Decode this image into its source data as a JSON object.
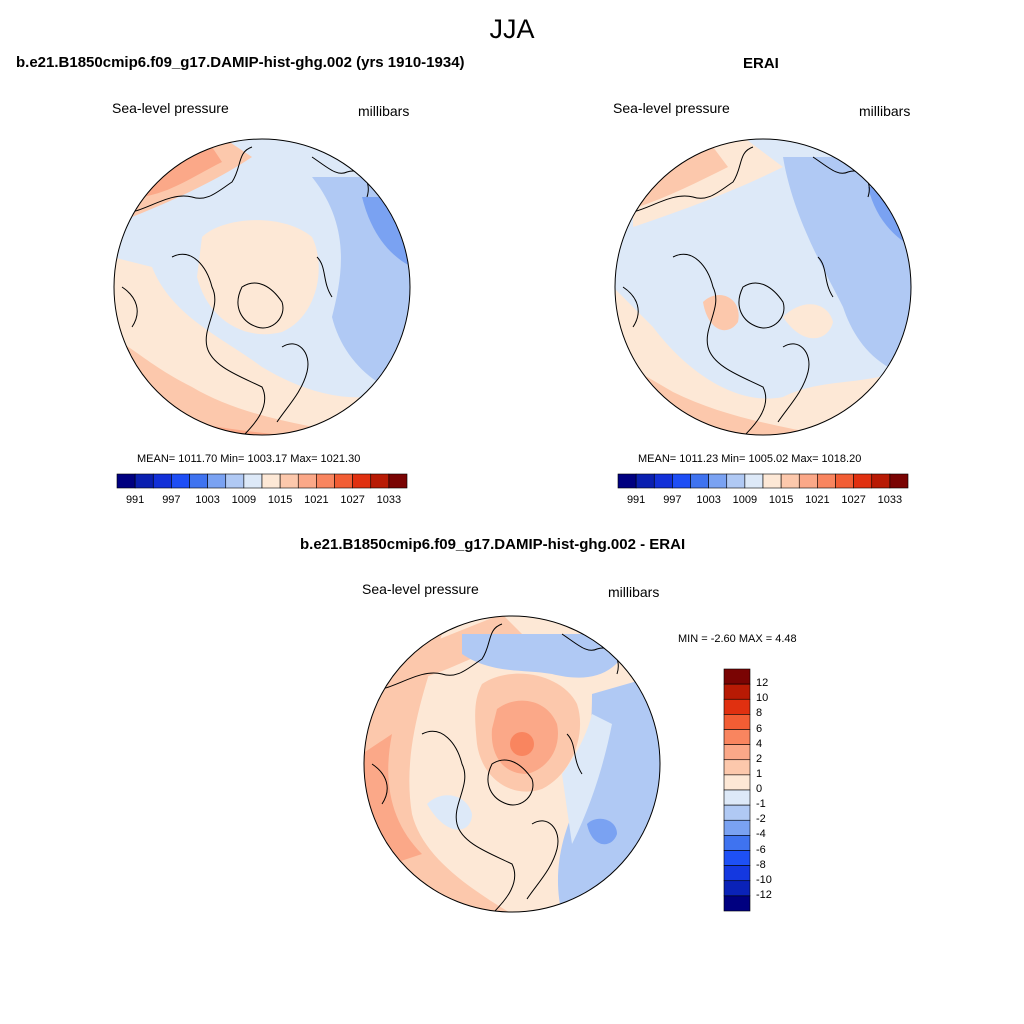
{
  "season": "JJA",
  "colors": {
    "abs_scale": [
      "#000080",
      "#0a1fb0",
      "#1230d8",
      "#1e4ef5",
      "#3f73f0",
      "#7aa2f2",
      "#b0c9f4",
      "#dde9f8",
      "#fde8d6",
      "#fcc8ac",
      "#fba888",
      "#f9855f",
      "#f25d34",
      "#e03010",
      "#b81a04",
      "#7a0403"
    ],
    "diff_scale": [
      "#000080",
      "#0a22b8",
      "#1438e0",
      "#1e50f5",
      "#3f73f0",
      "#7aa2f2",
      "#b0c9f4",
      "#dde9f8",
      "#fde8d6",
      "#fcc8ac",
      "#fba888",
      "#f9855f",
      "#f25d34",
      "#e03010",
      "#b81a04",
      "#7a0403"
    ]
  },
  "panels": {
    "model": {
      "title": "b.e21.B1850cmip6.f09_g17.DAMIP-hist-ghg.002 (yrs 1910-1934)",
      "left_label": "Sea-level pressure",
      "right_label": "millibars",
      "stats": "MEAN= 1011.70  Min= 1003.17  Max= 1021.30",
      "ticks": [
        "991",
        "997",
        "1003",
        "1009",
        "1015",
        "1021",
        "1027",
        "1033"
      ]
    },
    "obs": {
      "title": "ERAI",
      "left_label": "Sea-level pressure",
      "right_label": "millibars",
      "stats": "MEAN= 1011.23  Min= 1005.02  Max= 1018.20",
      "ticks": [
        "991",
        "997",
        "1003",
        "1009",
        "1015",
        "1021",
        "1027",
        "1033"
      ]
    },
    "diff": {
      "title": "b.e21.B1850cmip6.f09_g17.DAMIP-hist-ghg.002 - ERAI",
      "left_label": "Sea-level pressure",
      "right_label": "millibars",
      "stats": "MIN =  -2.60 MAX =   4.48",
      "ticks": [
        "12",
        "10",
        "8",
        "6",
        "4",
        "2",
        "1",
        "0",
        "-1",
        "-2",
        "-4",
        "-6",
        "-8",
        "-10",
        "-12"
      ]
    }
  }
}
